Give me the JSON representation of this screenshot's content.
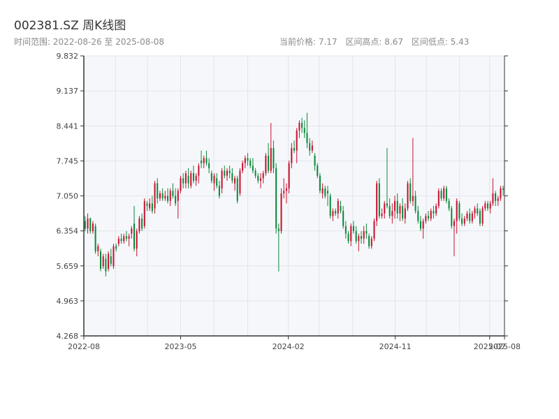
{
  "header": {
    "title": "002381.SZ 周K线图",
    "subtitle": "时间范围: 2022-08-26 至 2025-08-08",
    "current_price": "当前价格: 7.17",
    "range_high": "区间高点: 8.67",
    "range_low": "区间低点: 5.43"
  },
  "colors": {
    "up": "#c8102e",
    "down": "#0a8a3a",
    "plot_bg": "#f5f7fa",
    "grid": "#e1e5ea",
    "axis": "#333333"
  },
  "chart_data": {
    "type": "candlestick",
    "title": "002381.SZ 周K线图",
    "ylim": [
      4.268,
      9.832
    ],
    "y_ticks": [
      "4.268",
      "4.963",
      "5.659",
      "6.354",
      "7.050",
      "7.745",
      "8.441",
      "9.137",
      "9.832"
    ],
    "x_tick_labels": [
      {
        "label": "2022-08",
        "date": "2022-08-26"
      },
      {
        "label": "2023-05",
        "date": "2023-05-01"
      },
      {
        "label": "2024-02",
        "date": "2024-02-01"
      },
      {
        "label": "2024-11",
        "date": "2024-11-01"
      },
      {
        "label": "2025-07",
        "date": "2025-07-01"
      },
      {
        "label": "2025-08",
        "date": "2025-08-08"
      }
    ],
    "start_date": "2022-08-26",
    "end_date": "2025-08-08",
    "candles": [
      [
        6.55,
        6.65,
        6.35,
        6.4
      ],
      [
        6.4,
        6.7,
        6.3,
        6.6
      ],
      [
        6.6,
        6.62,
        6.3,
        6.35
      ],
      [
        6.35,
        6.55,
        6.3,
        6.5
      ],
      [
        6.45,
        6.5,
        5.9,
        5.95
      ],
      [
        5.95,
        6.1,
        5.85,
        6.05
      ],
      [
        5.95,
        6.0,
        5.55,
        5.6
      ],
      [
        5.65,
        5.9,
        5.6,
        5.85
      ],
      [
        5.8,
        5.9,
        5.45,
        5.55
      ],
      [
        5.6,
        5.95,
        5.55,
        5.9
      ],
      [
        5.85,
        6.0,
        5.65,
        5.7
      ],
      [
        5.65,
        6.1,
        5.6,
        6.05
      ],
      [
        6.05,
        6.1,
        5.95,
        6.0
      ],
      [
        6.1,
        6.25,
        6.05,
        6.2
      ],
      [
        6.2,
        6.3,
        6.1,
        6.15
      ],
      [
        6.15,
        6.3,
        6.1,
        6.25
      ],
      [
        6.25,
        6.35,
        6.15,
        6.2
      ],
      [
        6.2,
        6.3,
        6.05,
        6.25
      ],
      [
        6.3,
        6.45,
        6.2,
        6.4
      ],
      [
        6.5,
        6.85,
        5.95,
        6.0
      ],
      [
        6.0,
        6.4,
        5.85,
        6.35
      ],
      [
        6.35,
        6.65,
        6.3,
        6.6
      ],
      [
        6.6,
        6.7,
        6.35,
        6.4
      ],
      [
        6.45,
        7.0,
        6.4,
        6.95
      ],
      [
        6.9,
        6.95,
        6.75,
        6.85
      ],
      [
        6.8,
        7.0,
        6.75,
        6.9
      ],
      [
        6.9,
        7.05,
        6.7,
        6.75
      ],
      [
        6.8,
        7.35,
        6.7,
        7.3
      ],
      [
        7.3,
        7.4,
        6.9,
        7.0
      ],
      [
        7.0,
        7.15,
        6.95,
        7.1
      ],
      [
        7.1,
        7.2,
        6.95,
        7.0
      ],
      [
        7.0,
        7.15,
        6.95,
        7.05
      ],
      [
        7.05,
        7.2,
        6.9,
        6.95
      ],
      [
        6.95,
        7.2,
        6.85,
        7.15
      ],
      [
        7.15,
        7.3,
        7.0,
        7.05
      ],
      [
        7.05,
        7.2,
        6.85,
        6.9
      ],
      [
        6.95,
        7.2,
        6.6,
        7.15
      ],
      [
        7.15,
        7.45,
        7.1,
        7.4
      ],
      [
        7.4,
        7.5,
        7.2,
        7.3
      ],
      [
        7.3,
        7.55,
        7.2,
        7.5
      ],
      [
        7.45,
        7.6,
        7.2,
        7.3
      ],
      [
        7.25,
        7.55,
        7.2,
        7.5
      ],
      [
        7.5,
        7.65,
        7.3,
        7.35
      ],
      [
        7.35,
        7.5,
        7.25,
        7.45
      ],
      [
        7.45,
        7.7,
        7.3,
        7.65
      ],
      [
        7.75,
        7.95,
        7.6,
        7.7
      ],
      [
        7.7,
        7.85,
        7.6,
        7.8
      ],
      [
        7.8,
        7.95,
        7.65,
        7.7
      ],
      [
        7.7,
        7.8,
        7.5,
        7.6
      ],
      [
        7.5,
        7.55,
        7.3,
        7.35
      ],
      [
        7.3,
        7.5,
        7.15,
        7.45
      ],
      [
        7.4,
        7.5,
        7.2,
        7.25
      ],
      [
        7.25,
        7.35,
        7.0,
        7.05
      ],
      [
        7.2,
        7.6,
        7.1,
        7.55
      ],
      [
        7.55,
        7.65,
        7.4,
        7.45
      ],
      [
        7.45,
        7.6,
        7.35,
        7.55
      ],
      [
        7.55,
        7.65,
        7.4,
        7.5
      ],
      [
        7.5,
        7.6,
        7.3,
        7.35
      ],
      [
        7.3,
        7.45,
        7.15,
        7.4
      ],
      [
        7.4,
        7.45,
        6.9,
        6.95
      ],
      [
        7.1,
        7.6,
        7.05,
        7.55
      ],
      [
        7.55,
        7.75,
        7.5,
        7.7
      ],
      [
        7.7,
        7.85,
        7.6,
        7.8
      ],
      [
        7.8,
        7.9,
        7.65,
        7.75
      ],
      [
        7.75,
        7.8,
        7.6,
        7.65
      ],
      [
        7.65,
        7.8,
        7.5,
        7.55
      ],
      [
        7.55,
        7.6,
        7.4,
        7.45
      ],
      [
        7.45,
        7.5,
        7.3,
        7.35
      ],
      [
        7.35,
        7.5,
        7.2,
        7.4
      ],
      [
        7.4,
        7.55,
        7.3,
        7.5
      ],
      [
        7.5,
        7.9,
        7.45,
        7.85
      ],
      [
        7.85,
        8.1,
        7.5,
        7.55
      ],
      [
        7.55,
        8.5,
        7.5,
        8.0
      ],
      [
        8.0,
        8.15,
        7.5,
        7.6
      ],
      [
        7.6,
        7.7,
        6.3,
        6.4
      ],
      [
        6.4,
        6.5,
        5.55,
        6.35
      ],
      [
        6.35,
        7.2,
        6.3,
        7.1
      ],
      [
        7.1,
        7.4,
        7.0,
        7.15
      ],
      [
        7.15,
        7.3,
        6.9,
        7.2
      ],
      [
        7.2,
        7.75,
        7.1,
        7.7
      ],
      [
        7.7,
        8.1,
        7.6,
        8.0
      ],
      [
        8.0,
        8.15,
        7.9,
        7.95
      ],
      [
        7.95,
        8.4,
        7.7,
        8.35
      ],
      [
        8.35,
        8.55,
        8.2,
        8.5
      ],
      [
        8.5,
        8.6,
        8.3,
        8.4
      ],
      [
        8.4,
        8.55,
        8.2,
        8.3
      ],
      [
        8.3,
        8.7,
        8.0,
        8.1
      ],
      [
        8.1,
        8.2,
        7.85,
        7.95
      ],
      [
        7.95,
        8.15,
        7.9,
        8.05
      ],
      [
        7.85,
        7.9,
        7.55,
        7.65
      ],
      [
        7.65,
        7.7,
        7.4,
        7.45
      ],
      [
        7.45,
        7.5,
        7.1,
        7.15
      ],
      [
        7.1,
        7.3,
        7.0,
        7.2
      ],
      [
        7.2,
        7.25,
        7.0,
        7.05
      ],
      [
        7.15,
        7.25,
        6.85,
        7.1
      ],
      [
        7.05,
        7.1,
        6.6,
        6.65
      ],
      [
        6.65,
        6.8,
        6.55,
        6.75
      ],
      [
        6.75,
        6.8,
        6.65,
        6.7
      ],
      [
        6.7,
        7.0,
        6.6,
        6.95
      ],
      [
        6.85,
        6.95,
        6.7,
        6.75
      ],
      [
        6.75,
        6.85,
        6.4,
        6.45
      ],
      [
        6.45,
        6.55,
        6.2,
        6.3
      ],
      [
        6.3,
        6.35,
        6.1,
        6.15
      ],
      [
        6.15,
        6.5,
        6.05,
        6.45
      ],
      [
        6.45,
        6.55,
        6.3,
        6.35
      ],
      [
        6.35,
        6.45,
        6.1,
        6.15
      ],
      [
        6.15,
        6.3,
        5.95,
        6.25
      ],
      [
        6.25,
        6.35,
        6.1,
        6.2
      ],
      [
        6.2,
        6.45,
        6.1,
        6.35
      ],
      [
        6.35,
        6.5,
        6.2,
        6.3
      ],
      [
        6.25,
        6.3,
        6.0,
        6.05
      ],
      [
        6.05,
        6.25,
        6.0,
        6.2
      ],
      [
        6.2,
        6.6,
        6.15,
        6.55
      ],
      [
        6.55,
        7.35,
        6.45,
        7.3
      ],
      [
        7.3,
        7.4,
        6.6,
        6.65
      ],
      [
        6.65,
        6.8,
        6.6,
        6.7
      ],
      [
        6.7,
        6.95,
        6.6,
        6.9
      ],
      [
        6.9,
        8.0,
        6.8,
        6.85
      ],
      [
        6.85,
        7.0,
        6.6,
        6.65
      ],
      [
        6.65,
        6.9,
        6.5,
        6.75
      ],
      [
        6.75,
        7.05,
        6.6,
        6.95
      ],
      [
        6.95,
        7.1,
        6.6,
        6.7
      ],
      [
        6.7,
        6.9,
        6.55,
        6.85
      ],
      [
        6.85,
        7.0,
        6.55,
        6.6
      ],
      [
        6.6,
        6.9,
        6.5,
        6.8
      ],
      [
        6.8,
        7.35,
        6.75,
        7.3
      ],
      [
        7.3,
        7.4,
        6.9,
        6.95
      ],
      [
        6.95,
        8.2,
        6.85,
        7.05
      ],
      [
        7.05,
        7.15,
        6.7,
        6.75
      ],
      [
        6.75,
        6.85,
        6.5,
        6.55
      ],
      [
        6.55,
        6.65,
        6.35,
        6.4
      ],
      [
        6.4,
        6.6,
        6.2,
        6.55
      ],
      [
        6.55,
        6.7,
        6.5,
        6.65
      ],
      [
        6.65,
        6.75,
        6.55,
        6.6
      ],
      [
        6.6,
        6.8,
        6.55,
        6.75
      ],
      [
        6.75,
        6.85,
        6.6,
        6.7
      ],
      [
        6.7,
        6.9,
        6.65,
        6.85
      ],
      [
        6.85,
        7.2,
        6.8,
        7.15
      ],
      [
        7.15,
        7.2,
        6.95,
        7.0
      ],
      [
        7.0,
        7.25,
        6.95,
        7.2
      ],
      [
        7.2,
        7.25,
        6.9,
        6.95
      ],
      [
        6.95,
        7.0,
        6.75,
        6.8
      ],
      [
        6.8,
        6.85,
        6.4,
        6.45
      ],
      [
        6.45,
        6.6,
        5.85,
        6.55
      ],
      [
        6.55,
        7.0,
        6.3,
        6.95
      ],
      [
        6.9,
        6.95,
        6.55,
        6.6
      ],
      [
        6.6,
        6.7,
        6.45,
        6.5
      ],
      [
        6.5,
        6.65,
        6.45,
        6.6
      ],
      [
        6.6,
        6.75,
        6.55,
        6.7
      ],
      [
        6.7,
        6.8,
        6.5,
        6.55
      ],
      [
        6.55,
        6.75,
        6.5,
        6.7
      ],
      [
        6.7,
        6.85,
        6.6,
        6.8
      ],
      [
        6.8,
        6.9,
        6.65,
        6.7
      ],
      [
        6.75,
        6.8,
        6.45,
        6.5
      ],
      [
        6.5,
        6.85,
        6.45,
        6.8
      ],
      [
        6.8,
        6.95,
        6.75,
        6.9
      ],
      [
        6.9,
        6.95,
        6.75,
        6.8
      ],
      [
        6.8,
        6.95,
        6.7,
        6.9
      ],
      [
        6.9,
        7.4,
        6.85,
        7.1
      ],
      [
        7.1,
        7.15,
        6.85,
        6.95
      ],
      [
        6.95,
        7.05,
        6.85,
        7.0
      ],
      [
        7.0,
        7.25,
        6.95,
        7.2
      ],
      [
        7.2,
        7.25,
        7.05,
        7.17
      ]
    ]
  }
}
